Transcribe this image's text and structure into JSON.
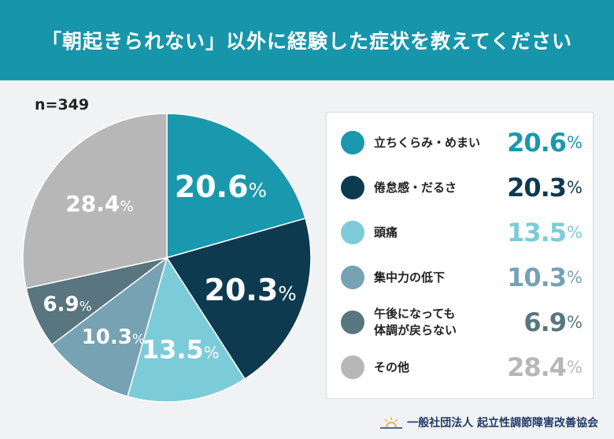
{
  "header": {
    "title": "「朝起きられない」以外に経験した症状を教えてください"
  },
  "sample_size": "n=349",
  "footer": {
    "organization": "一般社団法人 起立性調節障害改善協会",
    "logo_icon": "sunrise-icon"
  },
  "chart_data": {
    "type": "pie",
    "unit": "%",
    "start": "top, clockwise",
    "slices": [
      {
        "label": "立ちくらみ・めまい",
        "value": 20.6,
        "display": "20.6",
        "color": "#1a98ad"
      },
      {
        "label": "倦怠感・だるさ",
        "value": 20.3,
        "display": "20.3",
        "color": "#0d3a4f"
      },
      {
        "label": "頭痛",
        "value": 13.5,
        "display": "13.5",
        "color": "#7ccbd9"
      },
      {
        "label": "集中力の低下",
        "value": 10.3,
        "display": "10.3",
        "color": "#76a2b3"
      },
      {
        "label": "午後になっても\n体調が戻らない",
        "value": 6.9,
        "display": "6.9",
        "color": "#587580"
      },
      {
        "label": "その他",
        "value": 28.4,
        "display": "28.4",
        "color": "#b7b7b7"
      }
    ],
    "legend_placement": "right"
  }
}
